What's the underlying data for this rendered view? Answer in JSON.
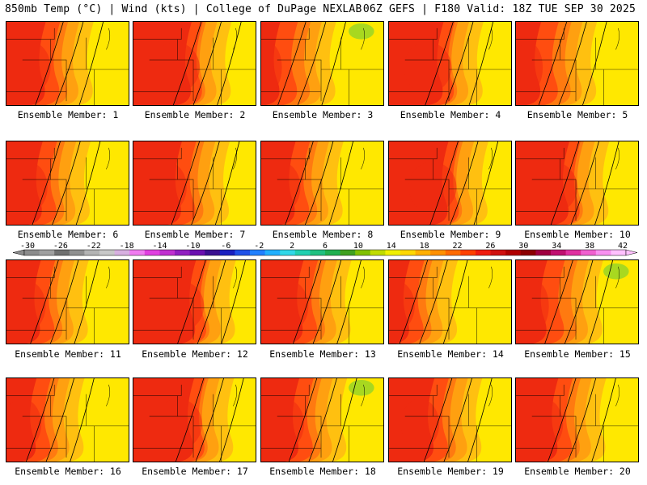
{
  "header": {
    "left_title": "850mb Temp (°C) | Wind (kts) | College of DuPage NEXLAB",
    "right_title": "06Z GEFS | F180 Valid: 18Z TUE SEP 30 2025"
  },
  "legend": {
    "labels": [
      "-30",
      "-26",
      "-22",
      "-18",
      "-14",
      "-10",
      "-6",
      "-2",
      "2",
      "6",
      "10",
      "14",
      "18",
      "22",
      "26",
      "30",
      "34",
      "38",
      "42"
    ],
    "colors": [
      "#8c8c8c",
      "#a0a0a0",
      "#707070",
      "#909090",
      "#b4b4b4",
      "#c8c8c8",
      "#d7b0e0",
      "#f07cf0",
      "#e040e0",
      "#c030d0",
      "#9020c0",
      "#6a10b0",
      "#3a1090",
      "#1a20c0",
      "#2050e8",
      "#2080ff",
      "#20b0ff",
      "#30d8e8",
      "#20d0b0",
      "#20c080",
      "#20b050",
      "#40a020",
      "#80c000",
      "#c0dc00",
      "#f0f000",
      "#ffd800",
      "#ffb000",
      "#ff9000",
      "#ff6a00",
      "#ff4000",
      "#f01c10",
      "#d01010",
      "#b00000",
      "#8c0000",
      "#a00040",
      "#c01070",
      "#e030a0",
      "#f060d0",
      "#f890f0",
      "#ffc0ff"
    ]
  },
  "panel_colors": {
    "dark_red": "#ee2a10",
    "red": "#ff4d10",
    "orange_red": "#ff7a10",
    "orange": "#ffa010",
    "light_orange": "#ffc010",
    "yellow": "#ffe800",
    "green": "#a8d820",
    "line": "#000000"
  },
  "panels": [
    {
      "label": "Ensemble Member: 1",
      "shift": 0.0,
      "warmth": 1
    },
    {
      "label": "Ensemble Member: 2",
      "shift": 0.18,
      "warmth": 2
    },
    {
      "label": "Ensemble Member: 3",
      "shift": -0.2,
      "warmth": 0
    },
    {
      "label": "Ensemble Member: 4",
      "shift": 0.12,
      "warmth": 2
    },
    {
      "label": "Ensemble Member: 5",
      "shift": -0.1,
      "warmth": 0
    },
    {
      "label": "Ensemble Member: 6",
      "shift": -0.05,
      "warmth": 1
    },
    {
      "label": "Ensemble Member: 7",
      "shift": 0.15,
      "warmth": 1
    },
    {
      "label": "Ensemble Member: 8",
      "shift": -0.08,
      "warmth": 1
    },
    {
      "label": "Ensemble Member: 9",
      "shift": 0.2,
      "warmth": 2
    },
    {
      "label": "Ensemble Member: 10",
      "shift": 0.1,
      "warmth": 2
    },
    {
      "label": "Ensemble Member: 11",
      "shift": -0.08,
      "warmth": 1
    },
    {
      "label": "Ensemble Member: 12",
      "shift": 0.25,
      "warmth": 2
    },
    {
      "label": "Ensemble Member: 13",
      "shift": 0.05,
      "warmth": 1
    },
    {
      "label": "Ensemble Member: 14",
      "shift": -0.3,
      "warmth": 1
    },
    {
      "label": "Ensemble Member: 15",
      "shift": 0.0,
      "warmth": 0
    },
    {
      "label": "Ensemble Member: 16",
      "shift": -0.15,
      "warmth": 1
    },
    {
      "label": "Ensemble Member: 17",
      "shift": 0.22,
      "warmth": 2
    },
    {
      "label": "Ensemble Member: 18",
      "shift": -0.02,
      "warmth": 1
    },
    {
      "label": "Ensemble Member: 19",
      "shift": 0.1,
      "warmth": 1
    },
    {
      "label": "Ensemble Member: 20",
      "shift": 0.05,
      "warmth": 1
    }
  ]
}
